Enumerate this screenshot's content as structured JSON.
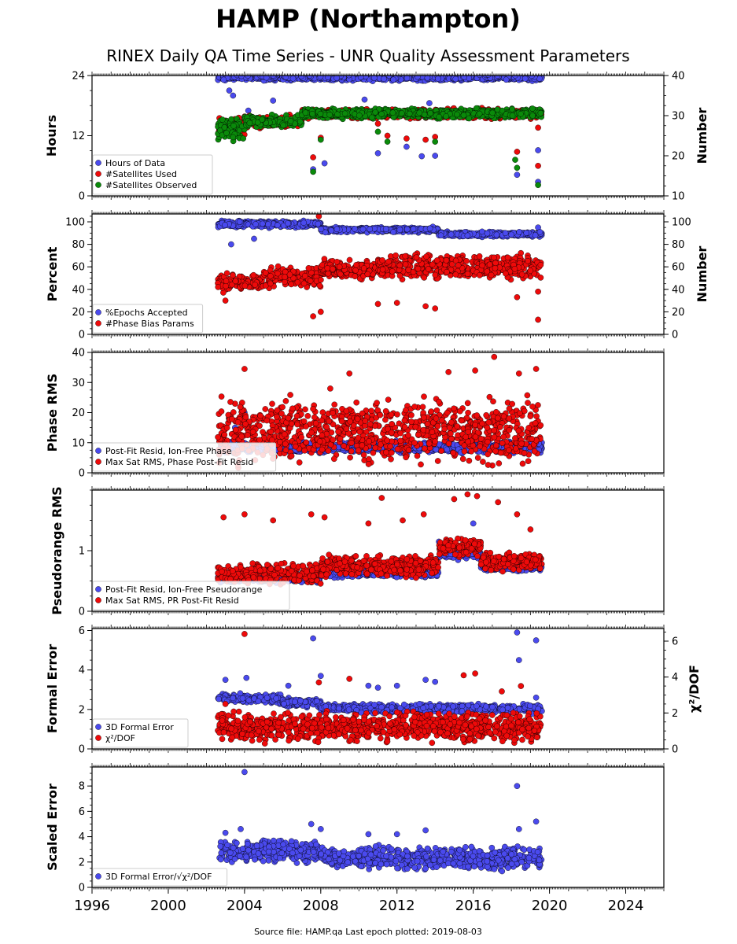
{
  "figure": {
    "title": "HAMP (Northampton)",
    "subtitle": "RINEX Daily QA Time Series - UNR Quality Assessment Parameters",
    "footer": "Source file: HAMP.qa Last epoch plotted: 2019-08-03"
  },
  "colors": {
    "blue": "#4a4aee",
    "red": "#ee0a0a",
    "green": "#0a8a0a"
  },
  "chart_data": [
    {
      "type": "scatter",
      "ylabel": "Hours",
      "ylabel_right": "Number",
      "ylim": [
        0,
        24
      ],
      "yticks": [
        0,
        12,
        24
      ],
      "ylim_right": [
        10,
        40
      ],
      "yticks_right": [
        10,
        20,
        30,
        40
      ],
      "xlim": [
        1996,
        2026
      ],
      "xticks": [
        1996,
        2000,
        2004,
        2008,
        2012,
        2016,
        2020,
        2024
      ],
      "legend": "lower-left",
      "series": [
        {
          "name": "Hours of Data",
          "color": "blue",
          "axis": "left",
          "segments": [
            [
              2002.6,
              2019.6,
              23.6,
              0.4
            ]
          ],
          "points": [
            [
              2003.2,
              21
            ],
            [
              2003.4,
              20
            ],
            [
              2004.2,
              17
            ],
            [
              2005.5,
              19
            ],
            [
              2007.6,
              5.3
            ],
            [
              2008.2,
              6.5
            ],
            [
              2011,
              8.5
            ],
            [
              2012.5,
              9.8
            ],
            [
              2013.3,
              7.9
            ],
            [
              2014,
              8
            ],
            [
              2018.3,
              4.2
            ],
            [
              2019.4,
              2.8
            ],
            [
              2019.4,
              9.1
            ],
            [
              2010.3,
              19.2
            ],
            [
              2013.7,
              18.5
            ]
          ]
        },
        {
          "name": "#Satellites Used",
          "color": "red",
          "axis": "right",
          "segments": [
            [
              2002.6,
              2004,
              27,
              1.5
            ],
            [
              2004,
              2007,
              28.5,
              1
            ],
            [
              2007,
              2009,
              30.5,
              0.8
            ],
            [
              2009,
              2019.6,
              30.5,
              0.8
            ]
          ],
          "points": [
            [
              2007.6,
              19.6
            ],
            [
              2008,
              24.5
            ],
            [
              2011,
              28
            ],
            [
              2011.5,
              25
            ],
            [
              2012.5,
              24.3
            ],
            [
              2013.5,
              24
            ],
            [
              2014,
              24.7
            ],
            [
              2018.3,
              21
            ],
            [
              2019.4,
              17.5
            ],
            [
              2019.4,
              27
            ]
          ]
        },
        {
          "name": "#Satellites Observed",
          "color": "green",
          "axis": "right",
          "segments": [
            [
              2002.6,
              2004,
              26.5,
              2
            ],
            [
              2004,
              2007,
              28.5,
              1
            ],
            [
              2007,
              2019.6,
              30.5,
              0.8
            ]
          ],
          "points": [
            [
              2007.6,
              16
            ],
            [
              2008,
              24
            ],
            [
              2011,
              26
            ],
            [
              2011.5,
              23.5
            ],
            [
              2014,
              23.5
            ],
            [
              2018.3,
              17
            ],
            [
              2019.4,
              12.7
            ],
            [
              2018.2,
              19
            ]
          ]
        }
      ]
    },
    {
      "type": "scatter",
      "ylabel": "Percent",
      "ylabel_right": "Number",
      "ylim": [
        0,
        107
      ],
      "yticks": [
        0,
        20,
        40,
        60,
        80,
        100
      ],
      "ylim_right": [
        0,
        107
      ],
      "yticks_right": [
        0,
        20,
        40,
        60,
        80,
        100
      ],
      "xlim": [
        1996,
        2026
      ],
      "legend": "lower-left",
      "series": [
        {
          "name": "%Epochs Accepted",
          "color": "blue",
          "axis": "left",
          "segments": [
            [
              2002.6,
              2008,
              98,
              2
            ],
            [
              2008,
              2014.2,
              93,
              1.5
            ],
            [
              2014.2,
              2019.6,
              89,
              1.5
            ]
          ],
          "points": [
            [
              2003.3,
              80
            ],
            [
              2004.5,
              85
            ],
            [
              2019.4,
              95
            ],
            [
              2019.5,
              91
            ]
          ]
        },
        {
          "name": "#Phase Bias Params",
          "color": "red",
          "axis": "right",
          "segments": [
            [
              2002.6,
              2005,
              46,
              5
            ],
            [
              2005,
              2008,
              51,
              6
            ],
            [
              2008,
              2011,
              58,
              6
            ],
            [
              2011,
              2019.6,
              60,
              7
            ]
          ],
          "points": [
            [
              2003,
              30
            ],
            [
              2007.6,
              16
            ],
            [
              2008,
              20
            ],
            [
              2011,
              27
            ],
            [
              2012,
              28
            ],
            [
              2013.5,
              25
            ],
            [
              2018.3,
              33
            ],
            [
              2019.4,
              13
            ],
            [
              2019.4,
              38
            ],
            [
              2007.9,
              105
            ],
            [
              2014,
              23
            ]
          ]
        }
      ]
    },
    {
      "type": "scatter",
      "ylabel": "Phase RMS",
      "ylim": [
        0,
        40
      ],
      "yticks": [
        0,
        10,
        20,
        30,
        40
      ],
      "xlim": [
        1996,
        2026
      ],
      "legend": "lower-left",
      "series": [
        {
          "name": "Post-Fit Resid, Ion-Free Phase",
          "color": "blue",
          "segments": [
            [
              2002.6,
              2019.6,
              8.5,
              1.2
            ]
          ],
          "points": [
            [
              2004,
              20
            ],
            [
              2003.5,
              15
            ]
          ]
        },
        {
          "name": "Max Sat RMS, Phase Post-Fit Resid",
          "color": "red",
          "segments": [
            [
              2002.6,
              2019.6,
              14,
              7
            ]
          ],
          "points": [
            [
              2004,
              34.5
            ],
            [
              2008.5,
              28
            ],
            [
              2009.5,
              33
            ],
            [
              2014.7,
              33.5
            ],
            [
              2016.1,
              34
            ],
            [
              2017.1,
              38.5
            ],
            [
              2018.4,
              33
            ],
            [
              2019.3,
              34.5
            ]
          ]
        }
      ]
    },
    {
      "type": "scatter",
      "ylabel": "Pseudorange RMS",
      "ylim": [
        0,
        2
      ],
      "yticks": [
        0,
        1
      ],
      "xlim": [
        1996,
        2026
      ],
      "legend": "lower-left",
      "series": [
        {
          "name": "Post-Fit Resid, Ion-Free Pseudorange",
          "color": "blue",
          "segments": [
            [
              2002.6,
              2008,
              0.55,
              0.05
            ],
            [
              2008,
              2014.2,
              0.62,
              0.04
            ],
            [
              2014.2,
              2016.4,
              0.95,
              0.06
            ],
            [
              2016.4,
              2019.6,
              0.72,
              0.04
            ]
          ],
          "points": [
            [
              2014.2,
              1.15
            ],
            [
              2016,
              1.45
            ]
          ]
        },
        {
          "name": "Max Sat RMS, PR Post-Fit Resid",
          "color": "red",
          "segments": [
            [
              2002.6,
              2008,
              0.62,
              0.12
            ],
            [
              2008,
              2014.2,
              0.75,
              0.12
            ],
            [
              2014.2,
              2016.4,
              1.05,
              0.1
            ],
            [
              2016.4,
              2019.6,
              0.82,
              0.1
            ]
          ],
          "points": [
            [
              2002.9,
              1.55
            ],
            [
              2004,
              1.6
            ],
            [
              2005.5,
              1.5
            ],
            [
              2007.5,
              1.6
            ],
            [
              2008.2,
              1.55
            ],
            [
              2010.5,
              1.45
            ],
            [
              2011.2,
              1.87
            ],
            [
              2012.3,
              1.5
            ],
            [
              2013.4,
              1.6
            ],
            [
              2015,
              1.85
            ],
            [
              2015.7,
              1.93
            ],
            [
              2016.2,
              1.9
            ],
            [
              2017.3,
              1.8
            ],
            [
              2018.3,
              1.6
            ],
            [
              2019,
              1.35
            ]
          ]
        }
      ]
    },
    {
      "type": "scatter",
      "ylabel": "Formal Error",
      "ylabel_right": "χ²/DOF",
      "ylim": [
        0,
        6.1
      ],
      "yticks": [
        0,
        2,
        4,
        6
      ],
      "ylim_right": [
        0,
        6.7
      ],
      "yticks_right": [
        0,
        2,
        4,
        6
      ],
      "xlim": [
        1996,
        2026
      ],
      "legend": "lower-left",
      "series": [
        {
          "name": "3D Formal Error",
          "color": "blue",
          "axis": "left",
          "segments": [
            [
              2002.6,
              2006,
              2.55,
              0.15
            ],
            [
              2006,
              2008,
              2.35,
              0.15
            ],
            [
              2008,
              2019.6,
              2.05,
              0.15
            ]
          ],
          "points": [
            [
              2003,
              3.5
            ],
            [
              2004.1,
              3.6
            ],
            [
              2006.3,
              3.2
            ],
            [
              2007.6,
              5.6
            ],
            [
              2008,
              3.7
            ],
            [
              2010.5,
              3.2
            ],
            [
              2011,
              3.1
            ],
            [
              2012,
              3.2
            ],
            [
              2013.5,
              3.5
            ],
            [
              2014,
              3.4
            ],
            [
              2018.3,
              5.9
            ],
            [
              2018.4,
              4.5
            ],
            [
              2019.3,
              5.5
            ],
            [
              2019.3,
              2.6
            ]
          ]
        },
        {
          "name": "χ²/DOF",
          "color": "red",
          "axis": "right",
          "segments": [
            [
              2002.6,
              2019.6,
              1.25,
              0.55
            ]
          ],
          "points": [
            [
              2004,
              6.4
            ],
            [
              2003,
              2.5
            ],
            [
              2007.9,
              3.7
            ],
            [
              2009.5,
              3.9
            ],
            [
              2015.5,
              4.1
            ],
            [
              2016.1,
              4.2
            ],
            [
              2017.5,
              3.2
            ],
            [
              2018.5,
              3.5
            ]
          ]
        }
      ]
    },
    {
      "type": "scatter",
      "ylabel": "Scaled Error",
      "ylim": [
        0,
        9.5
      ],
      "yticks": [
        0,
        2,
        4,
        6,
        8
      ],
      "xlim": [
        1996,
        2026
      ],
      "xticks": [
        1996,
        2000,
        2004,
        2008,
        2012,
        2016,
        2020,
        2024
      ],
      "legend": "lower-left",
      "series": [
        {
          "name": "3D Formal Error/√χ²/DOF",
          "color": "blue",
          "segments": [
            [
              2002.6,
              2008,
              2.8,
              0.6
            ],
            [
              2008,
              2019.6,
              2.3,
              0.6
            ]
          ],
          "points": [
            [
              2004,
              9.1
            ],
            [
              2003,
              4.3
            ],
            [
              2003.8,
              4.6
            ],
            [
              2007.5,
              5
            ],
            [
              2008,
              4.6
            ],
            [
              2010.5,
              4.2
            ],
            [
              2012,
              4.2
            ],
            [
              2013.5,
              4.5
            ],
            [
              2018.3,
              8
            ],
            [
              2018.4,
              4.6
            ],
            [
              2019.3,
              5.2
            ]
          ]
        }
      ]
    }
  ]
}
